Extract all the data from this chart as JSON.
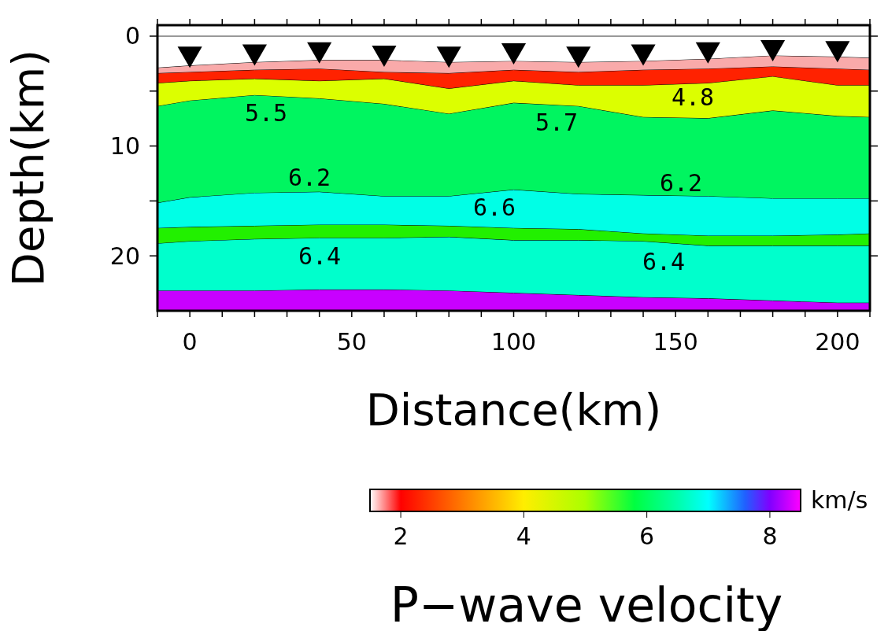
{
  "chart_data": {
    "type": "area",
    "stacked": true,
    "xlabel": "Distance(km)",
    "ylabel": "Depth(km)",
    "clabel": "P−wave velocity",
    "x": [
      -10,
      0,
      20,
      40,
      60,
      80,
      100,
      120,
      140,
      160,
      180,
      200,
      210
    ],
    "xlim": [
      -10,
      210
    ],
    "xticks": [
      {
        "value": -10,
        "label": null
      },
      0,
      {
        "value": 10,
        "label": null
      },
      {
        "value": 20,
        "label": null
      },
      {
        "value": 30,
        "label": null
      },
      {
        "value": 40,
        "label": null
      },
      50,
      {
        "value": 60,
        "label": null
      },
      {
        "value": 70,
        "label": null
      },
      {
        "value": 80,
        "label": null
      },
      {
        "value": 90,
        "label": null
      },
      100,
      {
        "value": 110,
        "label": null
      },
      {
        "value": 120,
        "label": null
      },
      {
        "value": 130,
        "label": null
      },
      {
        "value": 140,
        "label": null
      },
      150,
      {
        "value": 160,
        "label": null
      },
      {
        "value": 170,
        "label": null
      },
      {
        "value": 180,
        "label": null
      },
      {
        "value": 190,
        "label": null
      },
      200,
      {
        "value": 210,
        "label": null
      }
    ],
    "ylim": [
      25,
      -1
    ],
    "yticks": [
      0,
      {
        "value": 5,
        "label": null
      },
      10,
      {
        "value": 15,
        "label": null
      },
      20
    ],
    "clim": [
      1.5,
      8.5
    ],
    "cticks": [
      2,
      4,
      6,
      8
    ],
    "ref_lines": [
      {
        "axis": "y",
        "value": 0,
        "color": "#999999"
      }
    ],
    "series": [
      {
        "color": "#ffffff",
        "values": [
          2.9,
          2.7,
          2.4,
          2.2,
          2.2,
          2.4,
          2.3,
          2.4,
          2.3,
          2.1,
          1.8,
          1.9,
          2.0
        ]
      },
      {
        "color": "#f9aaaa",
        "values": [
          0.5,
          0.6,
          0.7,
          0.8,
          1.1,
          1.0,
          0.8,
          0.9,
          0.8,
          0.9,
          1.0,
          1.1,
          1.1
        ]
      },
      {
        "color": "#ff2200",
        "values": [
          0.9,
          0.8,
          0.8,
          1.1,
          0.6,
          1.4,
          1.0,
          1.2,
          1.4,
          1.3,
          0.9,
          1.5,
          1.4
        ]
      },
      {
        "color": "#dcff00",
        "values": [
          2.1,
          1.8,
          1.5,
          1.6,
          2.3,
          2.3,
          2.0,
          1.9,
          2.9,
          3.2,
          3.1,
          2.8,
          2.9
        ]
      },
      {
        "color": "#00f560",
        "values": [
          8.8,
          8.8,
          8.9,
          8.5,
          8.4,
          7.5,
          7.9,
          8.0,
          7.1,
          7.1,
          8.0,
          7.5,
          7.4
        ]
      },
      {
        "color": "#00ffe6",
        "values": [
          2.3,
          2.7,
          3.0,
          3.0,
          2.6,
          2.7,
          3.5,
          3.2,
          3.5,
          3.6,
          3.4,
          3.3,
          3.2
        ]
      },
      {
        "color": "#22f000",
        "values": [
          1.4,
          1.3,
          1.2,
          1.2,
          1.2,
          1.0,
          1.1,
          1.0,
          0.7,
          0.9,
          0.9,
          1.0,
          1.1
        ]
      },
      {
        "color": "#00ffcc",
        "values": [
          4.3,
          4.5,
          4.7,
          4.7,
          4.7,
          4.9,
          4.8,
          5.0,
          5.1,
          4.8,
          5.0,
          5.2,
          5.2
        ]
      },
      {
        "color": "#c800ff",
        "values": [
          1.8,
          1.8,
          1.8,
          1.9,
          1.9,
          1.8,
          1.6,
          1.4,
          1.2,
          1.1,
          0.9,
          0.7,
          0.7
        ]
      },
      {
        "type": "scatter",
        "marker": "triangle",
        "color": "#000000",
        "x": [
          0,
          20,
          40,
          60,
          80,
          100,
          120,
          140,
          160,
          180,
          200
        ],
        "values": [
          1.6,
          1.4,
          1.2,
          1.5,
          1.6,
          1.3,
          1.6,
          1.4,
          1.2,
          1.0,
          1.1
        ]
      }
    ],
    "annotations": [
      "5.5",
      "5.7",
      "4.8",
      "6.2",
      "6.2",
      "6.6",
      "6.4",
      "6.4",
      "km/s"
    ]
  }
}
